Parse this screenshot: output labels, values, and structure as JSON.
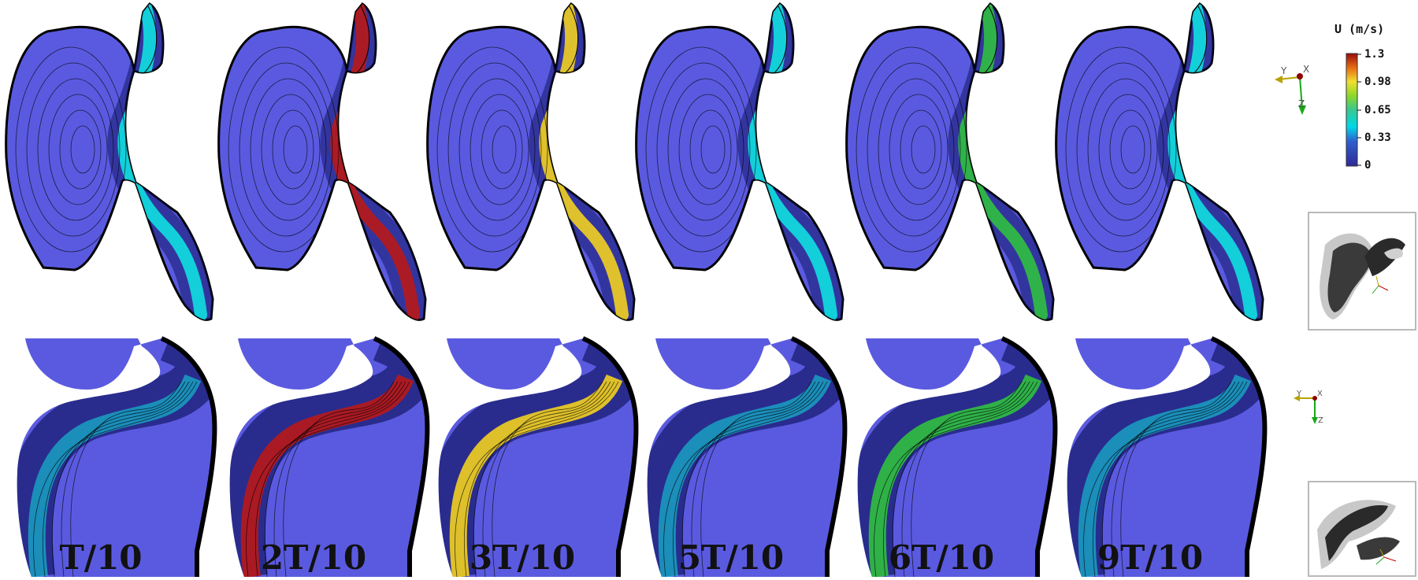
{
  "colorbar": {
    "title": "U (m/s)",
    "ticks": [
      "1.3",
      "0.98",
      "0.65",
      "0.33",
      "0"
    ],
    "colors": [
      "#3a2e9e",
      "#00e0e8",
      "#42d040",
      "#f0e030",
      "#e07010",
      "#9b0e0e"
    ]
  },
  "axes_triad_top": {
    "y": "Y",
    "x": "X",
    "z": "Z"
  },
  "axes_triad_bottom": {
    "y": "Y",
    "x": "X",
    "z": "Z"
  },
  "panels": [
    {
      "label": "T/10",
      "peak": "cyan"
    },
    {
      "label": "2T/10",
      "peak": "red"
    },
    {
      "label": "3T/10",
      "peak": "yellow"
    },
    {
      "label": "5T/10",
      "peak": "cyan"
    },
    {
      "label": "6T/10",
      "peak": "green"
    },
    {
      "label": "9T/10",
      "peak": "cyan"
    }
  ],
  "colors": {
    "field_base": "#5a5ae0",
    "field_dark": "#14186a",
    "contour": "#000000",
    "inset_body": "#3a3a3a",
    "inset_shadow": "#c8c8c8"
  }
}
